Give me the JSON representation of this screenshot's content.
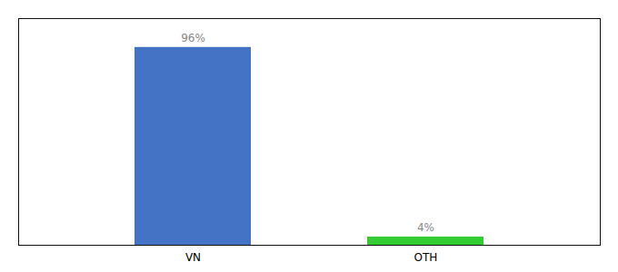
{
  "chart_data": {
    "type": "bar",
    "categories": [
      "VN",
      "OTH"
    ],
    "values": [
      96,
      4
    ],
    "value_labels": [
      "96%",
      "4%"
    ],
    "colors": [
      "#4472c4",
      "#33cc33"
    ],
    "ylim": [
      0,
      110
    ],
    "data_labels": true,
    "tick_labels": "x",
    "grid": false
  }
}
